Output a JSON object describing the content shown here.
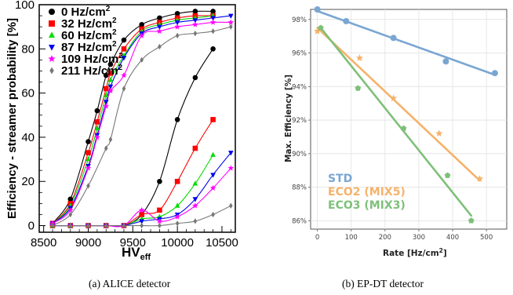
{
  "captions": {
    "a": "(a) ALICE detector",
    "b": "(b) EP-DT detector"
  },
  "chart_data": [
    {
      "type": "line",
      "title": "",
      "xlabel": "HV",
      "xlabel_sub": "eff",
      "ylabel": "Efficiency - streamer probability [%]",
      "xlim": [
        8450,
        10650
      ],
      "ylim": [
        -3,
        100
      ],
      "xticks": [
        8500,
        9000,
        9500,
        10000,
        10500
      ],
      "yticks": [
        0,
        20,
        40,
        60,
        80,
        100
      ],
      "xtick_labels": [
        "8500",
        "9000",
        "9500",
        "10000",
        "10500"
      ],
      "ytick_labels": [
        "0",
        "20",
        "40",
        "60",
        "80",
        "100"
      ],
      "legend_position": "top-left",
      "series": [
        {
          "name": "0 Hz/cm",
          "name_sup": "2",
          "color": "#000000",
          "marker": "circle",
          "efficiency": {
            "x": [
              8600,
              8800,
              9000,
              9100,
              9200,
              9250,
              9400,
              9600,
              9800,
              10000,
              10200,
              10400
            ],
            "y": [
              1,
              12,
              38,
              52,
              68,
              73,
              84,
              91,
              94,
              96,
              97,
              97
            ]
          },
          "streamer": {
            "x": [
              8600,
              8800,
              9000,
              9200,
              9400,
              9600,
              9800,
              10000,
              10200,
              10400
            ],
            "y": [
              0,
              0,
              0,
              0,
              0,
              5,
              20,
              48,
              67,
              80
            ]
          }
        },
        {
          "name": "32 Hz/cm",
          "name_sup": "2",
          "color": "#ff0000",
          "marker": "square",
          "efficiency": {
            "x": [
              8600,
              8800,
              9000,
              9100,
              9200,
              9250,
              9400,
              9600,
              9800,
              10000,
              10200,
              10400
            ],
            "y": [
              1,
              10,
              33,
              47,
              62,
              69,
              80,
              89,
              92,
              94,
              95,
              95
            ]
          },
          "streamer": {
            "x": [
              8600,
              8800,
              9000,
              9200,
              9400,
              9600,
              9800,
              10000,
              10200,
              10400
            ],
            "y": [
              0,
              0,
              0,
              0,
              0,
              5,
              7,
              20,
              35,
              48
            ]
          }
        },
        {
          "name": "60 Hz/cm",
          "name_sup": "2",
          "color": "#00dd00",
          "marker": "triangle-up",
          "efficiency": {
            "x": [
              8600,
              8800,
              9000,
              9100,
              9200,
              9250,
              9400,
              9600,
              9800,
              10000,
              10200,
              10400
            ],
            "y": [
              1,
              9,
              30,
              44,
              59,
              66,
              77,
              88,
              91,
              93,
              94,
              95
            ]
          },
          "streamer": {
            "x": [
              8600,
              8800,
              9000,
              9200,
              9400,
              9600,
              9800,
              10000,
              10200,
              10400
            ],
            "y": [
              0,
              0,
              0,
              0,
              0,
              3,
              4,
              9,
              19,
              32
            ]
          }
        },
        {
          "name": "87 Hz/cm",
          "name_sup": "2",
          "color": "#0000ee",
          "marker": "triangle-down",
          "efficiency": {
            "x": [
              8600,
              8800,
              9000,
              9100,
              9200,
              9250,
              9400,
              9600,
              9800,
              10000,
              10200,
              10400,
              10600
            ],
            "y": [
              1,
              8,
              27,
              41,
              56,
              63,
              76,
              87,
              90,
              92,
              93,
              94,
              95
            ]
          },
          "streamer": {
            "x": [
              8600,
              8800,
              9000,
              9200,
              9400,
              9600,
              9800,
              10000,
              10200,
              10400,
              10600
            ],
            "y": [
              0,
              0,
              0,
              0,
              0,
              2,
              3,
              5,
              12,
              23,
              33
            ]
          }
        },
        {
          "name": "109 Hz/cm",
          "name_sup": "2",
          "color": "#ff00ff",
          "marker": "star",
          "efficiency": {
            "x": [
              8600,
              8800,
              9000,
              9100,
              9200,
              9250,
              9400,
              9600,
              9800,
              10000,
              10200,
              10400,
              10600
            ],
            "y": [
              1,
              7,
              26,
              40,
              54,
              61,
              68,
              86,
              88,
              90,
              91,
              92,
              92
            ]
          },
          "streamer": {
            "x": [
              8600,
              8800,
              9000,
              9200,
              9400,
              9600,
              9800,
              10000,
              10200,
              10400,
              10600
            ],
            "y": [
              0,
              0,
              0,
              0,
              0,
              7,
              2,
              4,
              9,
              17,
              26
            ]
          }
        },
        {
          "name": "211 Hz/cm",
          "name_sup": "2",
          "color": "#777777",
          "marker": "diamond",
          "efficiency": {
            "x": [
              8600,
              8800,
              9000,
              9200,
              9250,
              9400,
              9600,
              9800,
              10000,
              10200,
              10400,
              10600
            ],
            "y": [
              0,
              5,
              18,
              35,
              39,
              62,
              75,
              81,
              86,
              87,
              88,
              90
            ]
          },
          "streamer": {
            "x": [
              8600,
              8800,
              9000,
              9200,
              9400,
              9600,
              9800,
              10000,
              10200,
              10400,
              10600
            ],
            "y": [
              0,
              0,
              0,
              0,
              0,
              0,
              0,
              1,
              2,
              5,
              9
            ]
          }
        }
      ]
    },
    {
      "type": "scatter",
      "title": "",
      "xlabel": "Rate [Hz/cm",
      "xlabel_sup": "2",
      "xlabel_tail": "]",
      "ylabel": "Max. Efficiency [%]",
      "xlim": [
        -20,
        560
      ],
      "ylim": [
        85.5,
        98.6
      ],
      "xticks": [
        0,
        100,
        200,
        300,
        400,
        500
      ],
      "yticks": [
        86,
        88,
        90,
        92,
        94,
        96,
        98
      ],
      "xtick_labels": [
        "0",
        "100",
        "200",
        "300",
        "400",
        "500"
      ],
      "ytick_labels": [
        "86%",
        "88%",
        "90%",
        "92%",
        "94%",
        "96%",
        "98%"
      ],
      "grid": true,
      "legend_position": "bottom-left",
      "series": [
        {
          "name": "STD",
          "color": "#7aa6d2",
          "marker": "circle",
          "x": [
            0,
            85,
            225,
            380,
            525
          ],
          "y": [
            98.6,
            97.9,
            96.9,
            95.5,
            94.8
          ],
          "fit": {
            "x": [
              0,
              525
            ],
            "y": [
              98.5,
              94.7
            ]
          }
        },
        {
          "name": "ECO2 (MIX5)",
          "color": "#f5b26a",
          "marker": "star",
          "x": [
            0,
            125,
            225,
            360,
            480
          ],
          "y": [
            97.3,
            95.7,
            93.3,
            91.2,
            88.5
          ],
          "fit": {
            "x": [
              0,
              480
            ],
            "y": [
              97.5,
              88.4
            ]
          }
        },
        {
          "name": "ECO3 (MIX3)",
          "color": "#7ec07a",
          "marker": "pentagon",
          "x": [
            10,
            120,
            255,
            385,
            455
          ],
          "y": [
            97.5,
            93.9,
            91.5,
            88.7,
            86.0
          ],
          "fit": {
            "x": [
              10,
              455
            ],
            "y": [
              97.5,
              86.3
            ]
          }
        }
      ]
    }
  ]
}
